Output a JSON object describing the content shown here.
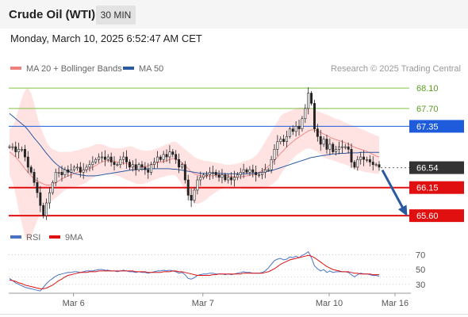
{
  "header": {
    "instrument": "Crude Oil (WTI)",
    "timeframe": "30 MIN"
  },
  "datetime": "Monday, March 10, 2025 6:52:47 AM CET",
  "legend": {
    "bb_label": "MA 20 + Bollinger Bands",
    "ma50_label": "MA 50",
    "bb_color": "#f08080",
    "ma50_color": "#2c5aa0",
    "copyright": "Research © 2025 Trading Central"
  },
  "rsi_legend": {
    "rsi_label": "RSI",
    "ma_label": "9MA",
    "rsi_color": "#4a72c4",
    "ma_color": "#dd1111"
  },
  "chart_data": [
    {
      "type": "candlestick",
      "title": "Crude Oil (WTI)",
      "x_tick_labels": [
        "Mar 6",
        "Mar 7",
        "Mar 10",
        "Mar 16"
      ],
      "ylim": [
        65.4,
        68.35
      ],
      "candles_close": [
        66.95,
        66.95,
        66.85,
        66.9,
        66.9,
        66.75,
        66.55,
        66.45,
        66.25,
        66.05,
        65.8,
        65.6,
        65.85,
        66.05,
        66.25,
        66.45,
        66.45,
        66.4,
        66.5,
        66.45,
        66.5,
        66.55,
        66.55,
        66.45,
        66.5,
        66.55,
        66.6,
        66.65,
        66.7,
        66.75,
        66.75,
        66.7,
        66.75,
        66.65,
        66.6,
        66.6,
        66.7,
        66.75,
        66.65,
        66.55,
        66.6,
        66.5,
        66.6,
        66.55,
        66.5,
        66.45,
        66.6,
        66.65,
        66.75,
        66.7,
        66.8,
        66.75,
        66.85,
        66.8,
        66.7,
        66.55,
        66.6,
        66.3,
        66.0,
        65.9,
        66.1,
        66.3,
        66.35,
        66.4,
        66.4,
        66.45,
        66.45,
        66.4,
        66.35,
        66.4,
        66.3,
        66.35,
        66.3,
        66.35,
        66.4,
        66.45,
        66.5,
        66.45,
        66.5,
        66.45,
        66.4,
        66.4,
        66.45,
        66.5,
        66.5,
        66.7,
        66.9,
        67.05,
        67.1,
        67.05,
        67.15,
        67.3,
        67.25,
        67.35,
        67.3,
        67.5,
        67.7,
        68.0,
        67.8,
        67.3,
        67.15,
        67.0,
        67.1,
        66.9,
        67.0,
        66.85,
        66.9,
        66.95,
        66.95,
        66.95,
        66.9,
        66.65,
        66.55,
        66.7,
        66.75,
        66.7,
        66.7,
        66.65,
        66.6,
        66.6,
        66.55
      ],
      "reference_levels": [
        {
          "label": "68.10",
          "value": 68.1,
          "color": "#80c040"
        },
        {
          "label": "67.70",
          "value": 67.7,
          "color": "#80c040"
        },
        {
          "label": "67.35",
          "value": 67.35,
          "color": "#1e5cdc"
        },
        {
          "label": "66.54",
          "value": 66.54,
          "color": "#333333"
        },
        {
          "label": "66.15",
          "value": 66.15,
          "color": "#e01010"
        },
        {
          "label": "65.60",
          "value": 65.6,
          "color": "#e01010"
        }
      ],
      "forecast_arrow": {
        "from": 66.54,
        "to": 65.6,
        "color": "#2c5aa0"
      },
      "ma20": [
        66.85,
        66.8,
        66.75,
        66.68,
        66.6,
        66.52,
        66.45,
        66.38,
        66.32,
        66.28,
        66.25,
        66.22,
        66.2,
        66.2,
        66.22,
        66.25,
        66.28,
        66.32,
        66.35,
        66.38,
        66.4,
        66.42,
        66.45,
        66.47,
        66.49,
        66.5,
        66.52,
        66.55,
        66.58,
        66.62,
        66.65,
        66.67,
        66.68,
        66.68,
        66.67,
        66.65,
        66.64,
        66.63,
        66.62,
        66.6,
        66.58,
        66.56,
        66.55,
        66.55,
        66.56,
        66.58,
        66.6,
        66.62,
        66.64,
        66.65,
        66.66,
        66.68,
        66.7,
        66.72,
        66.71,
        66.68,
        66.64,
        66.58,
        66.52,
        66.46,
        66.42,
        66.4,
        66.38,
        66.37,
        66.37,
        66.38,
        66.38,
        66.39,
        66.4,
        66.4,
        66.39,
        66.38,
        66.37,
        66.36,
        66.36,
        66.36,
        66.37,
        66.38,
        66.39,
        66.4,
        66.42,
        66.45,
        66.48,
        66.52,
        66.57,
        66.62,
        66.68,
        66.75,
        66.82,
        66.88,
        66.95,
        67.0,
        67.05,
        67.1,
        67.14,
        67.18,
        67.22,
        67.26,
        67.28,
        67.28,
        67.26,
        67.23,
        67.2,
        67.17,
        67.14,
        67.11,
        67.09,
        67.07,
        67.05,
        67.03,
        67.0,
        66.97,
        66.94,
        66.92,
        66.9,
        66.88,
        66.86,
        66.83,
        66.8,
        66.77,
        66.75
      ],
      "bollinger_upper": [
        67.3,
        67.35,
        67.5,
        67.7,
        67.9,
        68.05,
        68.1,
        68.0,
        67.8,
        67.55,
        67.35,
        67.2,
        67.05,
        66.95,
        66.9,
        66.88,
        66.85,
        66.85,
        66.85,
        66.85,
        66.85,
        66.87,
        66.88,
        66.9,
        66.92,
        66.93,
        66.95,
        66.97,
        67.0,
        67.0,
        67.0,
        66.98,
        66.95,
        66.93,
        66.92,
        66.92,
        66.92,
        66.93,
        66.95,
        66.96,
        66.95,
        66.92,
        66.9,
        66.88,
        66.87,
        66.87,
        66.88,
        66.9,
        66.92,
        66.95,
        66.97,
        67.0,
        67.02,
        67.05,
        67.05,
        67.0,
        66.95,
        66.9,
        66.85,
        66.8,
        66.75,
        66.72,
        66.7,
        66.68,
        66.67,
        66.66,
        66.65,
        66.64,
        66.63,
        66.62,
        66.6,
        66.6,
        66.6,
        66.61,
        66.62,
        66.64,
        66.66,
        66.68,
        66.7,
        66.73,
        66.78,
        66.85,
        66.95,
        67.05,
        67.15,
        67.25,
        67.35,
        67.45,
        67.55,
        67.6,
        67.62,
        67.65,
        67.68,
        67.7,
        67.72,
        67.72,
        67.72,
        67.72,
        67.7,
        67.68,
        67.65,
        67.63,
        67.6,
        67.58,
        67.55,
        67.52,
        67.5,
        67.48,
        67.45,
        67.42,
        67.4,
        67.38,
        67.35,
        67.33,
        67.3,
        67.28,
        67.25,
        67.22,
        67.2,
        67.17,
        67.15
      ],
      "bollinger_lower": [
        66.4,
        66.25,
        66.0,
        65.7,
        65.45,
        65.2,
        65.1,
        65.15,
        65.35,
        65.5,
        65.62,
        65.7,
        65.78,
        65.85,
        65.9,
        65.95,
        66.0,
        66.05,
        66.1,
        66.12,
        66.15,
        66.17,
        66.18,
        66.2,
        66.22,
        66.25,
        66.3,
        66.33,
        66.37,
        66.4,
        66.42,
        66.42,
        66.42,
        66.41,
        66.4,
        66.38,
        66.36,
        66.33,
        66.3,
        66.28,
        66.25,
        66.23,
        66.22,
        66.22,
        66.23,
        66.25,
        66.28,
        66.3,
        66.32,
        66.35,
        66.36,
        66.38,
        66.39,
        66.4,
        66.38,
        66.3,
        66.2,
        66.1,
        66.0,
        65.92,
        65.85,
        65.83,
        65.85,
        65.88,
        65.92,
        65.98,
        66.02,
        66.06,
        66.1,
        66.12,
        66.14,
        66.15,
        66.15,
        66.15,
        66.14,
        66.13,
        66.12,
        66.12,
        66.12,
        66.12,
        66.12,
        66.12,
        66.13,
        66.15,
        66.17,
        66.2,
        66.25,
        66.3,
        66.4,
        66.5,
        66.58,
        66.65,
        66.72,
        66.78,
        66.82,
        66.86,
        66.9,
        66.92,
        66.9,
        66.88,
        66.85,
        66.8,
        66.75,
        66.72,
        66.7,
        66.68,
        66.66,
        66.64,
        66.62,
        66.6,
        66.58,
        66.55,
        66.52,
        66.5,
        66.48,
        66.46,
        66.45,
        66.44,
        66.43,
        66.42,
        66.42
      ],
      "ma50": [
        67.6,
        67.55,
        67.5,
        67.45,
        67.4,
        67.35,
        67.28,
        67.2,
        67.12,
        67.05,
        66.98,
        66.9,
        66.82,
        66.75,
        66.68,
        66.62,
        66.57,
        66.53,
        66.5,
        66.47,
        66.45,
        66.43,
        66.41,
        66.4,
        66.39,
        66.38,
        66.38,
        66.38,
        66.38,
        66.39,
        66.4,
        66.41,
        66.42,
        66.43,
        66.44,
        66.45,
        66.46,
        66.47,
        66.48,
        66.49,
        66.5,
        66.5,
        66.51,
        66.51,
        66.51,
        66.52,
        66.52,
        66.52,
        66.52,
        66.52,
        66.52,
        66.52,
        66.52,
        66.51,
        66.51,
        66.5,
        66.49,
        66.48,
        66.47,
        66.46,
        66.45,
        66.44,
        66.43,
        66.43,
        66.43,
        66.43,
        66.43,
        66.43,
        66.43,
        66.43,
        66.42,
        66.42,
        66.42,
        66.42,
        66.42,
        66.42,
        66.42,
        66.42,
        66.42,
        66.43,
        66.43,
        66.44,
        66.45,
        66.46,
        66.47,
        66.48,
        66.5,
        66.52,
        66.54,
        66.56,
        66.58,
        66.6,
        66.62,
        66.64,
        66.66,
        66.68,
        66.7,
        66.72,
        66.74,
        66.75,
        66.76,
        66.77,
        66.78,
        66.79,
        66.8,
        66.81,
        66.81,
        66.82,
        66.82,
        66.82,
        66.83,
        66.83,
        66.83,
        66.83,
        66.84,
        66.84,
        66.84,
        66.84,
        66.84,
        66.84,
        66.84
      ]
    },
    {
      "type": "line",
      "series": [
        {
          "name": "RSI",
          "values": [
            38,
            35,
            32,
            30,
            28,
            26,
            25,
            24,
            23,
            22,
            21,
            26,
            31,
            35,
            38,
            41,
            43,
            44,
            45,
            46,
            46,
            47,
            47,
            46,
            47,
            48,
            48,
            48,
            49,
            50,
            50,
            49,
            49,
            48,
            48,
            47,
            48,
            49,
            48,
            47,
            47,
            46,
            47,
            46,
            46,
            45,
            46,
            47,
            48,
            48,
            49,
            48,
            49,
            48,
            47,
            45,
            46,
            43,
            38,
            37,
            39,
            42,
            43,
            44,
            44,
            45,
            45,
            44,
            44,
            44,
            43,
            44,
            43,
            44,
            45,
            46,
            47,
            46,
            46,
            45,
            45,
            45,
            46,
            48,
            52,
            57,
            62,
            64,
            65,
            63,
            64,
            67,
            66,
            68,
            66,
            69,
            71,
            74,
            66,
            55,
            51,
            48,
            50,
            46,
            48,
            46,
            47,
            47,
            47,
            47,
            46,
            43,
            40,
            43,
            45,
            44,
            44,
            43,
            42,
            42,
            41
          ]
        },
        {
          "name": "9MA",
          "values": [
            36,
            35,
            34,
            32,
            31,
            29,
            28,
            27,
            26,
            25,
            24,
            24,
            25,
            27,
            29,
            32,
            35,
            37,
            40,
            42,
            43,
            44,
            45,
            46,
            46,
            46,
            47,
            47,
            47,
            48,
            48,
            48,
            48,
            48,
            48,
            48,
            48,
            48,
            48,
            48,
            48,
            47,
            47,
            47,
            47,
            46,
            46,
            46,
            46,
            46,
            47,
            47,
            47,
            48,
            48,
            47,
            47,
            46,
            45,
            44,
            43,
            42,
            42,
            42,
            42,
            42,
            43,
            43,
            44,
            44,
            44,
            44,
            44,
            44,
            44,
            44,
            45,
            45,
            45,
            45,
            45,
            45,
            45,
            46,
            47,
            49,
            51,
            54,
            57,
            59,
            61,
            63,
            64,
            65,
            66,
            67,
            68,
            69,
            68,
            66,
            63,
            60,
            57,
            54,
            52,
            50,
            49,
            48,
            47,
            47,
            47,
            46,
            45,
            45,
            44,
            44,
            44,
            44,
            43,
            43,
            43
          ]
        }
      ],
      "y_tick_labels": [
        "70",
        "50",
        "30"
      ],
      "ylim": [
        18,
        80
      ]
    }
  ]
}
